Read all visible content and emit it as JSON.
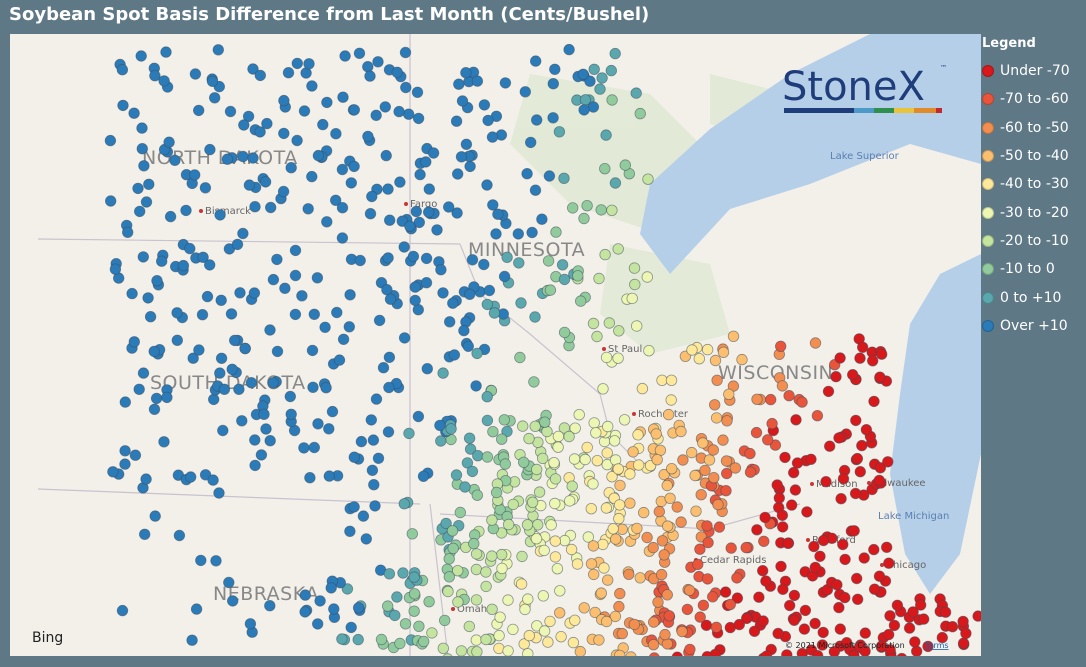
{
  "header": {
    "title": "Soybean Spot Basis Difference from Last Month (Cents/Bushel)"
  },
  "legend": {
    "title": "Legend",
    "items": [
      {
        "label": "Under -70",
        "color": "#d7191c"
      },
      {
        "label": "-70 to -60",
        "color": "#e8553b"
      },
      {
        "label": "-60 to -50",
        "color": "#f28e50"
      },
      {
        "label": "-50 to -40",
        "color": "#fbbf6f"
      },
      {
        "label": "-40 to -30",
        "color": "#fee89a"
      },
      {
        "label": "-30 to -20",
        "color": "#edf6b2"
      },
      {
        "label": "-20 to -10",
        "color": "#c4e49f"
      },
      {
        "label": "-10 to 0",
        "color": "#91cb9c"
      },
      {
        "label": "0 to +10",
        "color": "#5aa8ad"
      },
      {
        "label": "Over +10",
        "color": "#2b7bb9"
      }
    ]
  },
  "map": {
    "states": [
      "NORTH DAKOTA",
      "MINNESOTA",
      "SOUTH DAKOTA",
      "WISCONSIN",
      "NEBRASKA"
    ],
    "cities": [
      "Bismarck",
      "Fargo",
      "St Paul",
      "Rochester",
      "Madison",
      "Milwaukee",
      "Rockford",
      "Chicago",
      "Cedar Rapids",
      "Omaha"
    ],
    "lakes": [
      "Lake Superior",
      "Lake Michigan"
    ],
    "logo": {
      "name": "StoneX",
      "mark": "™"
    },
    "attribution": {
      "provider": "Bing",
      "copyright": "© 2021 Microsoft Corporation",
      "terms": "Terms"
    }
  }
}
